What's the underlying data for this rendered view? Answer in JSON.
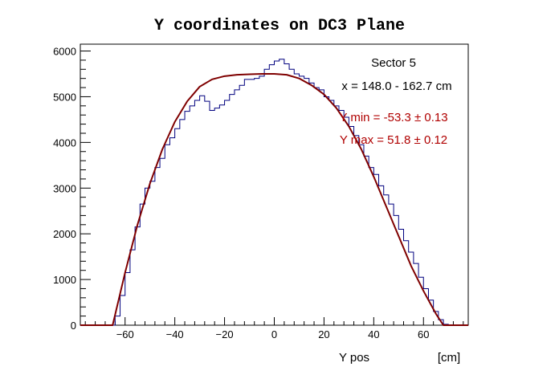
{
  "chart_data": {
    "type": "histogram",
    "title": "Y coordinates on DC3 Plane",
    "xlabel": "Y pos",
    "xunit": "[cm]",
    "ylabel": "",
    "xlim": [
      -78,
      78
    ],
    "ylim": [
      0,
      6150
    ],
    "x_ticks": [
      -60,
      -40,
      -20,
      0,
      20,
      40,
      60
    ],
    "y_ticks": [
      0,
      1000,
      2000,
      3000,
      4000,
      5000,
      6000
    ],
    "grid": false,
    "legend": "none",
    "annotations": {
      "sector": "Sector 5",
      "x_range": "x = 148.0 - 162.7 cm",
      "y_min": "Y min = -53.3  ± 0.13",
      "y_max": "Y max = 51.8  ± 0.12"
    },
    "series": [
      {
        "kind": "histogram",
        "color": "#00007f",
        "points": [
          [
            -78,
            0
          ],
          [
            -66,
            0
          ],
          [
            -64,
            200
          ],
          [
            -62,
            650
          ],
          [
            -60,
            1150
          ],
          [
            -58,
            1650
          ],
          [
            -56,
            2150
          ],
          [
            -54,
            2650
          ],
          [
            -52,
            3000
          ],
          [
            -50,
            3150
          ],
          [
            -48,
            3450
          ],
          [
            -46,
            3650
          ],
          [
            -44,
            3950
          ],
          [
            -42,
            4100
          ],
          [
            -40,
            4300
          ],
          [
            -38,
            4500
          ],
          [
            -36,
            4680
          ],
          [
            -34,
            4800
          ],
          [
            -32,
            4920
          ],
          [
            -30,
            5020
          ],
          [
            -28,
            4900
          ],
          [
            -26,
            4700
          ],
          [
            -24,
            4750
          ],
          [
            -22,
            4820
          ],
          [
            -20,
            4920
          ],
          [
            -18,
            5050
          ],
          [
            -16,
            5150
          ],
          [
            -14,
            5250
          ],
          [
            -12,
            5380
          ],
          [
            -10,
            5380
          ],
          [
            -8,
            5400
          ],
          [
            -6,
            5450
          ],
          [
            -4,
            5600
          ],
          [
            -2,
            5700
          ],
          [
            0,
            5780
          ],
          [
            2,
            5820
          ],
          [
            4,
            5720
          ],
          [
            6,
            5600
          ],
          [
            8,
            5500
          ],
          [
            10,
            5450
          ],
          [
            12,
            5400
          ],
          [
            14,
            5300
          ],
          [
            16,
            5200
          ],
          [
            18,
            5150
          ],
          [
            20,
            5000
          ],
          [
            22,
            4920
          ],
          [
            24,
            4800
          ],
          [
            26,
            4700
          ],
          [
            28,
            4550
          ],
          [
            30,
            4350
          ],
          [
            32,
            4150
          ],
          [
            34,
            3950
          ],
          [
            36,
            3700
          ],
          [
            38,
            3450
          ],
          [
            40,
            3300
          ],
          [
            42,
            3050
          ],
          [
            44,
            2850
          ],
          [
            46,
            2650
          ],
          [
            48,
            2400
          ],
          [
            50,
            2100
          ],
          [
            52,
            1850
          ],
          [
            54,
            1600
          ],
          [
            56,
            1350
          ],
          [
            58,
            1050
          ],
          [
            60,
            800
          ],
          [
            62,
            550
          ],
          [
            64,
            300
          ],
          [
            66,
            120
          ],
          [
            68,
            20
          ],
          [
            70,
            0
          ],
          [
            78,
            0
          ]
        ]
      },
      {
        "kind": "fit",
        "color": "#7f0000",
        "points": [
          [
            -78,
            0
          ],
          [
            -65,
            0
          ],
          [
            -60,
            1150
          ],
          [
            -55,
            2200
          ],
          [
            -50,
            3100
          ],
          [
            -45,
            3850
          ],
          [
            -40,
            4450
          ],
          [
            -35,
            4900
          ],
          [
            -30,
            5220
          ],
          [
            -25,
            5380
          ],
          [
            -20,
            5450
          ],
          [
            -15,
            5480
          ],
          [
            -10,
            5490
          ],
          [
            -5,
            5500
          ],
          [
            0,
            5500
          ],
          [
            5,
            5480
          ],
          [
            10,
            5400
          ],
          [
            15,
            5250
          ],
          [
            20,
            5050
          ],
          [
            25,
            4750
          ],
          [
            30,
            4350
          ],
          [
            35,
            3850
          ],
          [
            40,
            3250
          ],
          [
            45,
            2600
          ],
          [
            50,
            1950
          ],
          [
            55,
            1300
          ],
          [
            60,
            750
          ],
          [
            65,
            250
          ],
          [
            68,
            0
          ],
          [
            78,
            0
          ]
        ]
      }
    ]
  }
}
